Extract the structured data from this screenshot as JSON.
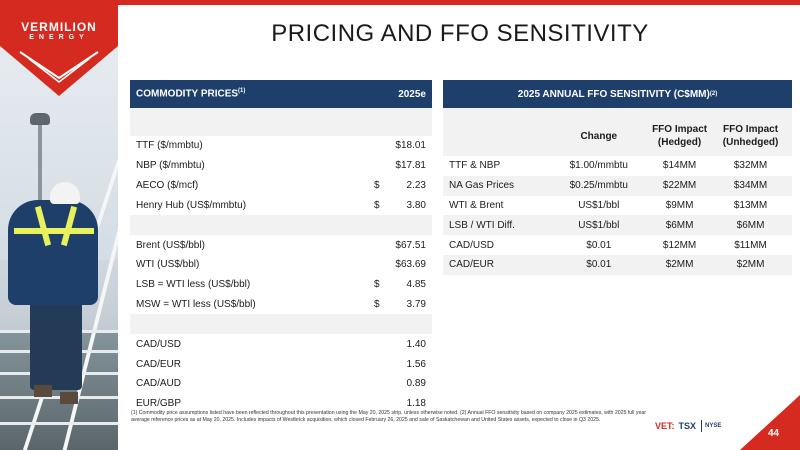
{
  "logo": {
    "name": "VERMILION",
    "sub": "ENERGY"
  },
  "title": "PRICING AND FFO SENSITIVITY",
  "commodity": {
    "header_label": "COMMODITY PRICES",
    "header_sup": "(1)",
    "header_year": "2025e",
    "groups": [
      [
        {
          "label": "TTF ($/mmbtu)",
          "val": "$18.01"
        },
        {
          "label": "NBP ($/mmbtu)",
          "val": "$17.81"
        },
        {
          "label": "AECO ($/mcf)",
          "sym": "$",
          "val": "2.23"
        },
        {
          "label": "Henry Hub (US$/mmbtu)",
          "sym": "$",
          "val": "3.80"
        }
      ],
      [
        {
          "label": "Brent (US$/bbl)",
          "val": "$67.51"
        },
        {
          "label": "WTI (US$/bbl)",
          "val": "$63.69"
        },
        {
          "label": "LSB = WTI less (US$/bbl)",
          "sym": "$",
          "val": "4.85"
        },
        {
          "label": "MSW = WTI less (US$/bbl)",
          "sym": "$",
          "val": "3.79"
        }
      ],
      [
        {
          "label": "CAD/USD",
          "val": "1.40"
        },
        {
          "label": "CAD/EUR",
          "val": "1.56"
        },
        {
          "label": "CAD/AUD",
          "val": "0.89"
        },
        {
          "label": "EUR/GBP",
          "val": "1.18"
        }
      ]
    ]
  },
  "ffo": {
    "header_label": "2025 ANNUAL FFO SENSITIVITY (C$MM)",
    "header_sup": "(2)",
    "columns": [
      "",
      "Change",
      "FFO Impact (Hedged)",
      "FFO Impact (Unhedged)"
    ],
    "col3_l1": "FFO Impact",
    "col3_l2": "(Hedged)",
    "col4_l1": "FFO Impact",
    "col4_l2": "(Unhedged)",
    "rows": [
      [
        "TTF & NBP",
        "$1.00/mmbtu",
        "$14MM",
        "$32MM"
      ],
      [
        "NA Gas Prices",
        "$0.25/mmbtu",
        "$22MM",
        "$34MM"
      ],
      [
        "WTI & Brent",
        "US$1/bbl",
        "$9MM",
        "$13MM"
      ],
      [
        "LSB / WTI Diff.",
        "US$1/bbl",
        "$6MM",
        "$6MM"
      ],
      [
        "CAD/USD",
        "$0.01",
        "$12MM",
        "$11MM"
      ],
      [
        "CAD/EUR",
        "$0.01",
        "$2MM",
        "$2MM"
      ]
    ]
  },
  "footnote": "(1) Commodity price assumptions listed have been reflected throughout this presentation using the May 20, 2025 strip, unless otherwise noted. (2) Annual FFO sensitivity based on company 2025 estimates, with 2025 full year average reference prices as at May 20, 2025. Includes impacts of Westbrick acquisition, which closed February 26, 2025 and sale of Saskatchewan and United States assets, expected to close in Q3 2025.",
  "exchange": {
    "vet": "VET:",
    "tsx": "TSX",
    "nyse": "NYSE"
  },
  "page_number": "44",
  "colors": {
    "navy": "#1e3f6b",
    "red": "#d42a1f"
  }
}
